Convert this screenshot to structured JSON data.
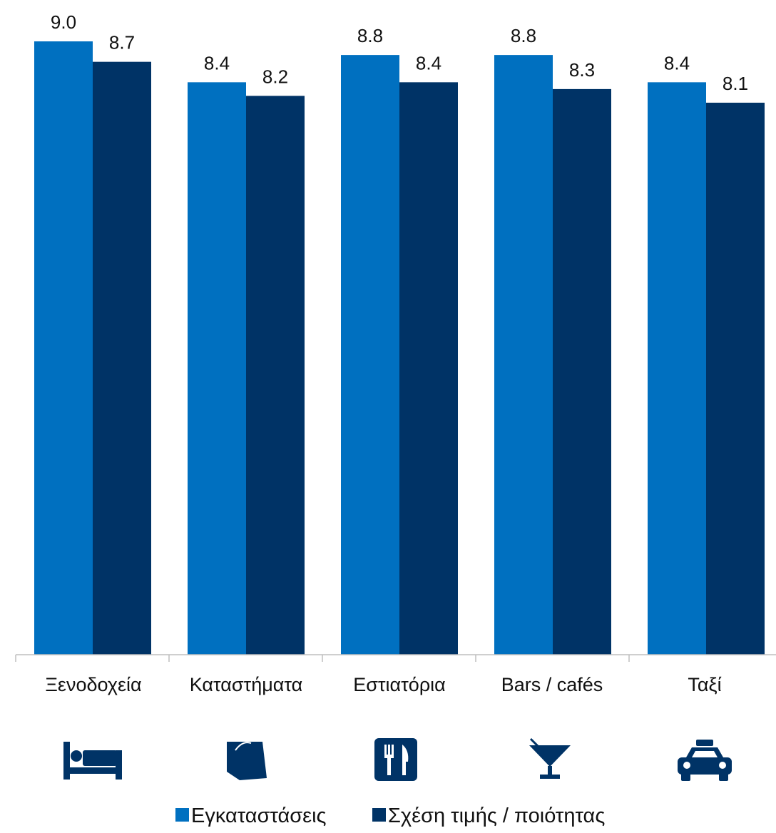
{
  "chart_data": {
    "type": "bar",
    "title": "",
    "xlabel": "",
    "ylabel": "",
    "ylim": [
      0,
      9.0
    ],
    "grid": false,
    "legend_position": "bottom",
    "categories": [
      "Ξενοδοχεία",
      "Καταστήματα",
      "Εστιατόρια",
      "Bars / cafés",
      "Ταξί"
    ],
    "category_icons": [
      "bed-icon",
      "shopping-bag-icon",
      "fork-knife-icon",
      "cocktail-icon",
      "taxi-icon"
    ],
    "series": [
      {
        "name": "Εγκαταστάσεις",
        "color": "#0070C0",
        "values": [
          9.0,
          8.4,
          8.8,
          8.8,
          8.4
        ]
      },
      {
        "name": "Σχέση τιμής / ποιότητας",
        "color": "#003366",
        "values": [
          8.7,
          8.2,
          8.4,
          8.3,
          8.1
        ]
      }
    ]
  }
}
